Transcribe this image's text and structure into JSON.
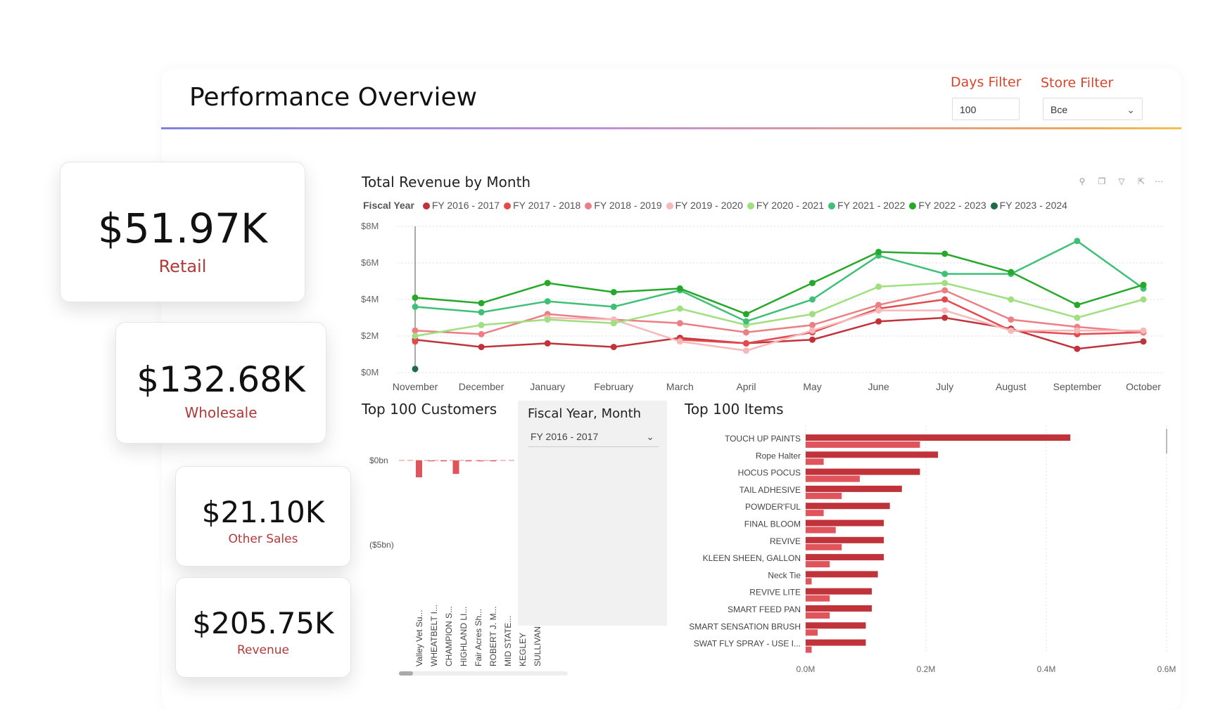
{
  "page": {
    "title": "Performance Overview"
  },
  "filters": {
    "days": {
      "label": "Days Filter",
      "value": "100"
    },
    "store": {
      "label": "Store Filter",
      "value": "Все"
    }
  },
  "kpis": [
    {
      "value": "$51.97K",
      "label": "Retail"
    },
    {
      "value": "$132.68K",
      "label": "Wholesale"
    },
    {
      "value": "$21.10K",
      "label": "Other Sales"
    },
    {
      "value": "$205.75K",
      "label": "Revenue"
    }
  ],
  "revenue_chart": {
    "title": "Total Revenue by Month",
    "legend_title": "Fiscal Year"
  },
  "customers": {
    "title": "Top 100 Customers",
    "y_ticks": [
      "$0bn",
      "($5bn)"
    ],
    "names": [
      "Valley Vet Su...",
      "WHEATBELT I...",
      "CHAMPION S...",
      "HIGHLAND LI...",
      "Fair Acres Sh...",
      "ROBERT J. M...",
      "MID STATE...",
      "KEGLEY",
      "SULLIVAN"
    ]
  },
  "slicer": {
    "title": "Fiscal Year, Month",
    "value": "FY 2016 - 2017"
  },
  "items_chart": {
    "title": "Top 100 Items"
  },
  "colors": {
    "accent": "#d9442c",
    "kpi_label": "#b03a3a",
    "bar_dark": "#c0333a",
    "bar_light": "#e0555b"
  },
  "chart_data": [
    {
      "type": "line",
      "title": "Total Revenue by Month",
      "legend_title": "Fiscal Year",
      "legend_position": "top-left",
      "grid": true,
      "categories": [
        "November",
        "December",
        "January",
        "February",
        "March",
        "April",
        "May",
        "June",
        "July",
        "August",
        "September",
        "October"
      ],
      "y_ticks": [
        "$0M",
        "$2M",
        "$4M",
        "$6M",
        "$8M"
      ],
      "ylim": [
        0,
        8
      ],
      "series": [
        {
          "name": "FY 2016 - 2017",
          "color": "#c0333a",
          "values": [
            1.8,
            1.4,
            1.6,
            1.4,
            1.9,
            1.6,
            1.8,
            2.8,
            3.0,
            2.4,
            1.3,
            1.7
          ]
        },
        {
          "name": "FY 2017 - 2018",
          "color": "#e24a4f",
          "values": [
            1.7,
            null,
            null,
            null,
            1.8,
            1.6,
            2.2,
            3.5,
            4.0,
            2.3,
            2.1,
            2.2
          ]
        },
        {
          "name": "FY 2018 - 2019",
          "color": "#ec7f84",
          "values": [
            2.3,
            2.1,
            3.2,
            2.9,
            2.7,
            2.2,
            2.6,
            3.7,
            4.5,
            2.9,
            2.5,
            2.2
          ]
        },
        {
          "name": "FY 2019 - 2020",
          "color": "#f6b8b8",
          "values": [
            null,
            null,
            3.0,
            2.9,
            1.7,
            1.2,
            2.3,
            3.4,
            3.4,
            2.3,
            2.3,
            2.3
          ]
        },
        {
          "name": "FY 2020 - 2021",
          "color": "#9fdf7f",
          "values": [
            2.0,
            2.6,
            2.9,
            2.7,
            3.5,
            2.6,
            3.2,
            4.7,
            4.9,
            4.0,
            3.0,
            4.0
          ]
        },
        {
          "name": "FY 2021 - 2022",
          "color": "#3fc077",
          "values": [
            3.6,
            3.3,
            3.9,
            3.6,
            4.5,
            2.8,
            4.0,
            6.4,
            5.4,
            5.4,
            7.2,
            4.6
          ]
        },
        {
          "name": "FY 2022 - 2023",
          "color": "#26a82b",
          "values": [
            4.1,
            3.8,
            4.9,
            4.4,
            4.6,
            3.2,
            4.9,
            6.6,
            6.5,
            5.5,
            3.7,
            4.8
          ]
        },
        {
          "name": "FY 2023 - 2024",
          "color": "#1e6b4a",
          "values": [
            0.2,
            null,
            null,
            null,
            null,
            null,
            null,
            null,
            null,
            null,
            null,
            null
          ]
        }
      ]
    },
    {
      "type": "bar",
      "title": "Top 100 Customers",
      "y_ticks": [
        "$0bn",
        "($5bn)"
      ],
      "categories": [
        "Valley Vet Su...",
        "WHEATBELT I...",
        "CHAMPION S...",
        "HIGHLAND LI...",
        "Fair Acres Sh...",
        "ROBERT J. M...",
        "MID STATE...",
        "KEGLEY",
        "SULLIVAN"
      ],
      "values": [
        -1.0,
        -0.05,
        -0.05,
        -0.8,
        -0.05,
        -0.05,
        -0.05,
        0,
        0
      ]
    },
    {
      "type": "bar",
      "orientation": "horizontal",
      "title": "Top 100 Items",
      "x_ticks": [
        "0.0M",
        "0.2M",
        "0.4M",
        "0.6M"
      ],
      "xlim": [
        0,
        0.6
      ],
      "categories": [
        "TOUCH UP PAINTS",
        "Rope Halter",
        "HOCUS POCUS",
        "TAIL ADHESIVE",
        "POWDER'FUL",
        "FINAL BLOOM",
        "REVIVE",
        "KLEEN SHEEN, GALLON",
        "Neck Tie",
        "REVIVE LITE",
        "SMART FEED PAN",
        "SMART SENSATION BRUSH",
        "SWAT FLY SPRAY - USE I..."
      ],
      "series": [
        {
          "color": "#c0333a",
          "values": [
            0.44,
            0.22,
            0.19,
            0.16,
            0.14,
            0.13,
            0.13,
            0.13,
            0.12,
            0.11,
            0.11,
            0.1,
            0.1
          ]
        },
        {
          "color": "#e0555b",
          "values": [
            0.19,
            0.03,
            0.09,
            0.06,
            0.03,
            0.05,
            0.06,
            0.04,
            0.01,
            0.04,
            0.04,
            0.02,
            0.01
          ]
        }
      ]
    }
  ]
}
